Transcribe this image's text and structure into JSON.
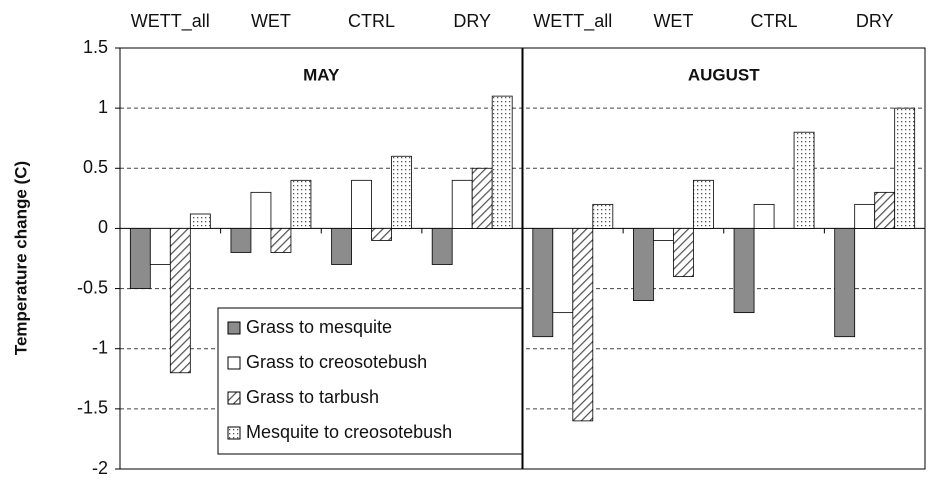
{
  "chart_data": {
    "type": "bar",
    "ylabel": "Temperature change (C)",
    "categories": [
      "WETT_all",
      "WET",
      "CTRL",
      "DRY",
      "WETT_all",
      "WET",
      "CTRL",
      "DRY"
    ],
    "annotations": [
      "MAY",
      "AUGUST"
    ],
    "series": [
      {
        "name": "Grass to mesquite",
        "color": "#8c8c8c",
        "pattern": "solid",
        "values": [
          -0.5,
          -0.2,
          -0.3,
          -0.3,
          -0.9,
          -0.6,
          -0.7,
          -0.9
        ]
      },
      {
        "name": "Grass to creosotebush",
        "color": "#ffffff",
        "pattern": "solid",
        "values": [
          -0.3,
          0.3,
          0.4,
          0.4,
          -0.7,
          -0.1,
          0.2,
          0.2
        ]
      },
      {
        "name": "Grass to tarbush",
        "color": "#555555",
        "pattern": "diagonal",
        "values": [
          -1.2,
          -0.2,
          -0.1,
          0.5,
          -1.6,
          -0.4,
          0,
          0.3
        ]
      },
      {
        "name": "Mesquite to creosotebush",
        "color": "#555555",
        "pattern": "dots",
        "values": [
          0.12,
          0.4,
          0.6,
          1.1,
          0.2,
          0.4,
          0.8,
          1.0
        ]
      }
    ],
    "ylim": [
      -2,
      1.5
    ],
    "yticks": [
      -2,
      -1.5,
      -1,
      -0.5,
      0,
      0.5,
      1,
      1.5
    ],
    "grid": true,
    "legend": "lower left"
  }
}
